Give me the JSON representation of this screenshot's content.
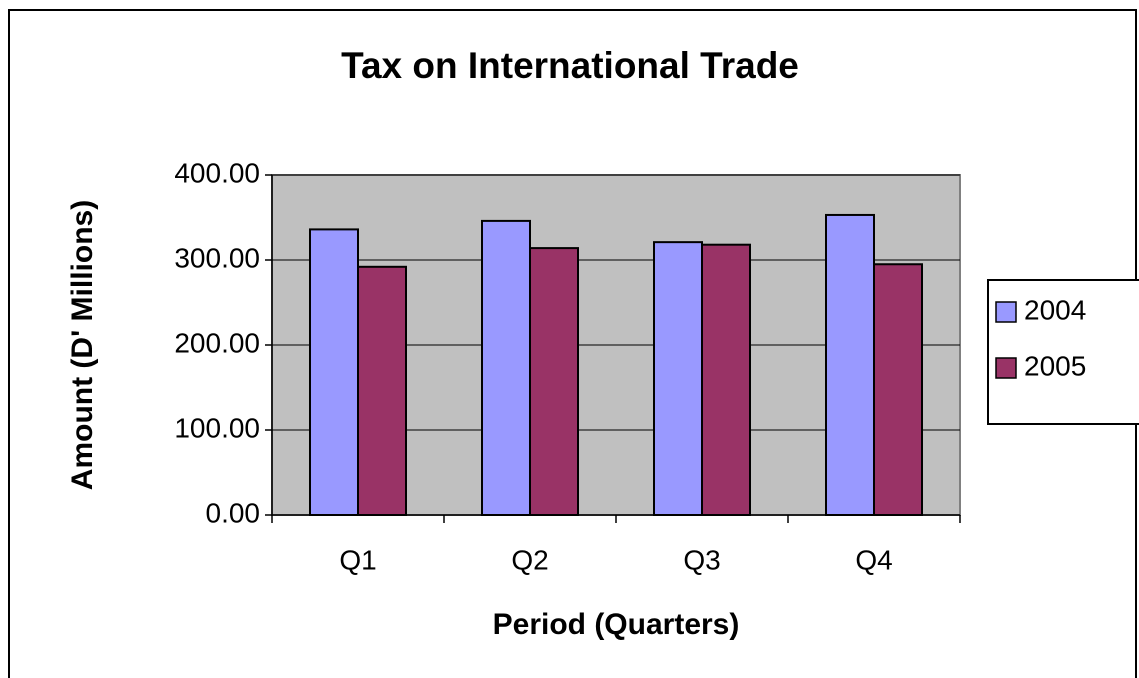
{
  "chart_data": {
    "type": "bar",
    "title": "Tax on International Trade",
    "x_label": "Period (Quarters)",
    "y_label": "Amount (D' Millions)",
    "categories": [
      "Q1",
      "Q2",
      "Q3",
      "Q4"
    ],
    "series": [
      {
        "name": "2004",
        "color": "#9999ff",
        "values": [
          336,
          346,
          321,
          353
        ]
      },
      {
        "name": "2005",
        "color": "#993366",
        "values": [
          292,
          314,
          318,
          295
        ]
      }
    ],
    "ylim": [
      0,
      400
    ],
    "yticks": [
      {
        "value": 0,
        "label": "0.00"
      },
      {
        "value": 100,
        "label": "100.00"
      },
      {
        "value": 200,
        "label": "200.00"
      },
      {
        "value": 300,
        "label": "300.00"
      },
      {
        "value": 400,
        "label": "400.00"
      }
    ],
    "grid": true,
    "legend": "right"
  }
}
